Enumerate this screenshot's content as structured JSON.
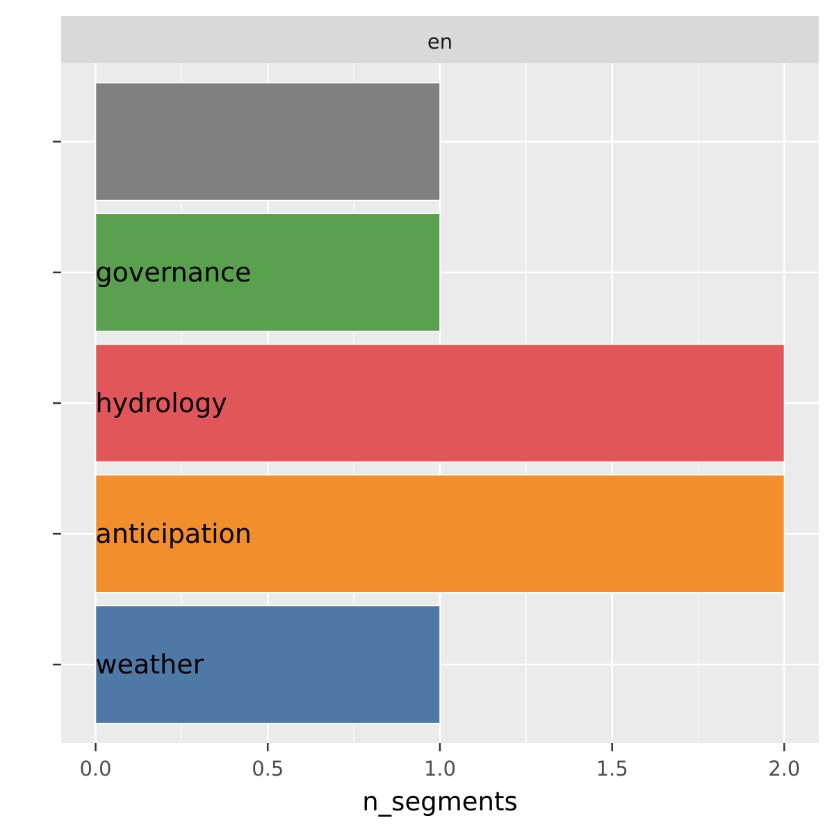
{
  "chart_data": {
    "type": "bar",
    "orientation": "horizontal",
    "facet": "en",
    "xlabel": "n_segments",
    "ylabel": "",
    "xlim": [
      -0.1,
      2.1
    ],
    "x_ticks": [
      "0.0",
      "0.5",
      "1.0",
      "1.5",
      "2.0"
    ],
    "grid": true,
    "bars": [
      {
        "label": "",
        "value": 1,
        "color": "#808080"
      },
      {
        "label": "governance",
        "value": 1,
        "color": "#59A14F"
      },
      {
        "label": "hydrology",
        "value": 2,
        "color": "#E15759"
      },
      {
        "label": "anticipation",
        "value": 2,
        "color": "#F28E2B"
      },
      {
        "label": "weather",
        "value": 1,
        "color": "#4E79A7"
      }
    ]
  }
}
